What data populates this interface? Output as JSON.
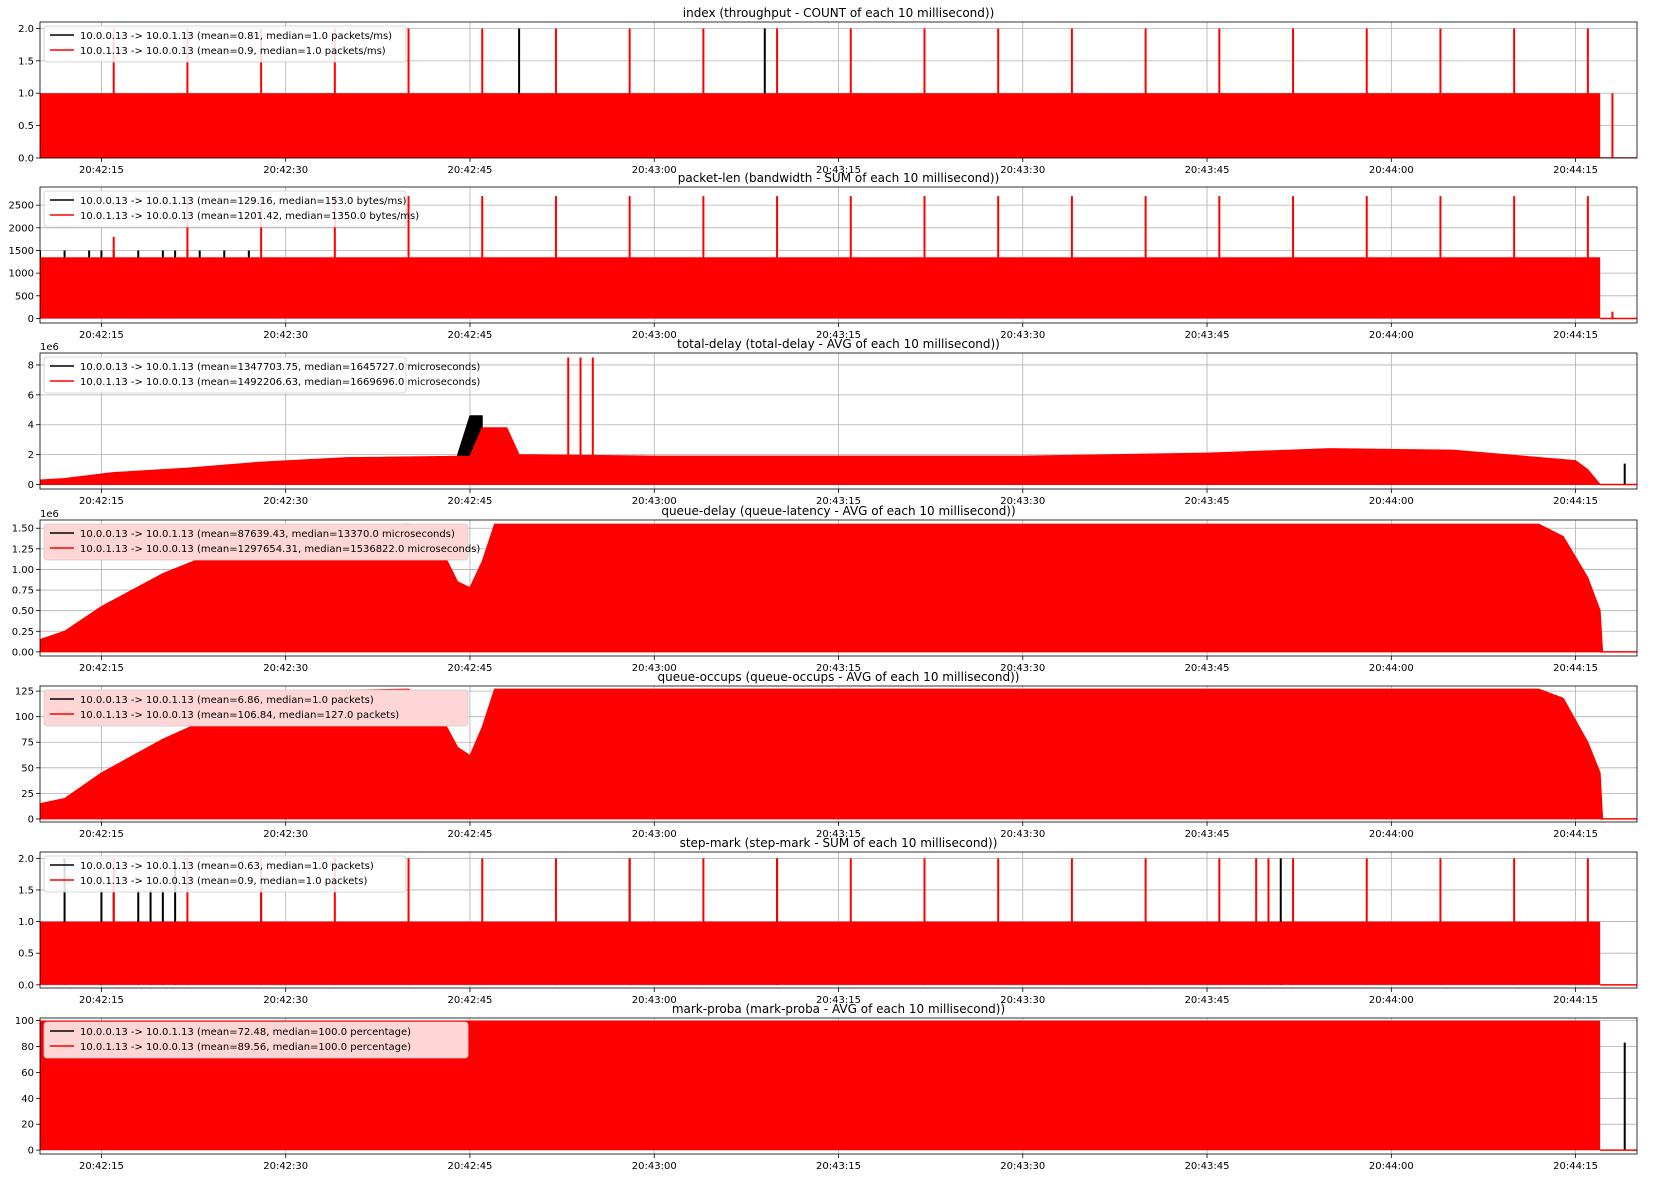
{
  "figure": {
    "background": "#ffffff",
    "series_colors": [
      "#000000",
      "#ff0000"
    ]
  },
  "x_axis": {
    "type": "time",
    "range": [
      "20:42:10",
      "20:44:20"
    ],
    "ticks": [
      "20:42:15",
      "20:42:30",
      "20:42:45",
      "20:43:00",
      "20:43:15",
      "20:43:30",
      "20:43:45",
      "20:44:00",
      "20:44:15"
    ],
    "grid": true
  },
  "chart_data": [
    {
      "type": "line",
      "title": "index (throughput - COUNT of each 10 millisecond))",
      "offset_label": "",
      "yticks": [
        "0.0",
        "0.5",
        "1.0",
        "1.5",
        "2.0"
      ],
      "ylim": [
        0,
        2.1
      ],
      "grid": true,
      "legend": {
        "position": "top-left",
        "highlighted": false
      },
      "series": [
        {
          "name": "10.0.0.13 -> 10.0.1.13 (mean=0.81, median=1.0 packets/ms)",
          "color": "#000000",
          "spikes": [
            {
              "t": "20:42:49",
              "v": 2.0
            },
            {
              "t": "20:43:09",
              "v": 2.0
            }
          ]
        },
        {
          "name": "10.0.1.13 -> 10.0.0.13 (mean=0.9, median=1.0 packets/ms)",
          "color": "#ff0000",
          "band": {
            "start": "20:42:10",
            "end": "20:44:17",
            "low": 0,
            "high": 1.0
          },
          "spikes": [
            {
              "t": "20:42:16",
              "v": 2.0
            },
            {
              "t": "20:42:22",
              "v": 2.0
            },
            {
              "t": "20:42:28",
              "v": 2.0
            },
            {
              "t": "20:42:34",
              "v": 2.0
            },
            {
              "t": "20:42:40",
              "v": 2.0
            },
            {
              "t": "20:42:46",
              "v": 2.0
            },
            {
              "t": "20:42:52",
              "v": 2.0
            },
            {
              "t": "20:42:58",
              "v": 2.0
            },
            {
              "t": "20:43:04",
              "v": 2.0
            },
            {
              "t": "20:43:10",
              "v": 2.0
            },
            {
              "t": "20:43:16",
              "v": 2.0
            },
            {
              "t": "20:43:22",
              "v": 2.0
            },
            {
              "t": "20:43:28",
              "v": 2.0
            },
            {
              "t": "20:43:34",
              "v": 2.0
            },
            {
              "t": "20:43:40",
              "v": 2.0
            },
            {
              "t": "20:43:46",
              "v": 2.0
            },
            {
              "t": "20:43:52",
              "v": 2.0
            },
            {
              "t": "20:43:58",
              "v": 2.0
            },
            {
              "t": "20:44:04",
              "v": 2.0
            },
            {
              "t": "20:44:10",
              "v": 2.0
            },
            {
              "t": "20:44:16",
              "v": 2.0
            },
            {
              "t": "20:44:18",
              "v": 1.0
            }
          ]
        }
      ]
    },
    {
      "type": "line",
      "title": "packet-len (bandwidth - SUM of each 10 millisecond))",
      "offset_label": "",
      "yticks": [
        "0",
        "500",
        "1000",
        "1500",
        "2000",
        "2500"
      ],
      "ylim": [
        -100,
        2900
      ],
      "grid": true,
      "legend": {
        "position": "top-left",
        "highlighted": false
      },
      "series": [
        {
          "name": "10.0.0.13 -> 10.0.1.13 (mean=129.16, median=153.0 bytes/ms)",
          "color": "#000000",
          "spikes": [
            {
              "t": "20:42:10",
              "v": 1500
            },
            {
              "t": "20:42:12",
              "v": 1500
            },
            {
              "t": "20:42:14",
              "v": 1500
            },
            {
              "t": "20:42:15",
              "v": 1500
            },
            {
              "t": "20:42:16",
              "v": 1500
            },
            {
              "t": "20:42:18",
              "v": 1500
            },
            {
              "t": "20:42:20",
              "v": 1500
            },
            {
              "t": "20:42:21",
              "v": 1500
            },
            {
              "t": "20:42:22",
              "v": 1500
            },
            {
              "t": "20:42:23",
              "v": 1500
            },
            {
              "t": "20:42:25",
              "v": 1500
            },
            {
              "t": "20:42:27",
              "v": 1500
            }
          ]
        },
        {
          "name": "10.0.1.13 -> 10.0.0.13 (mean=1201.42, median=1350.0 bytes/ms)",
          "color": "#ff0000",
          "band": {
            "start": "20:42:10",
            "end": "20:44:17",
            "low": 0,
            "high": 1350
          },
          "spikes": [
            {
              "t": "20:42:16",
              "v": 1800
            },
            {
              "t": "20:42:22",
              "v": 2700
            },
            {
              "t": "20:42:28",
              "v": 2700
            },
            {
              "t": "20:42:34",
              "v": 2700
            },
            {
              "t": "20:42:40",
              "v": 2700
            },
            {
              "t": "20:42:46",
              "v": 2700
            },
            {
              "t": "20:42:52",
              "v": 2700
            },
            {
              "t": "20:42:58",
              "v": 2700
            },
            {
              "t": "20:43:04",
              "v": 2700
            },
            {
              "t": "20:43:10",
              "v": 2700
            },
            {
              "t": "20:43:16",
              "v": 2700
            },
            {
              "t": "20:43:22",
              "v": 2700
            },
            {
              "t": "20:43:28",
              "v": 2700
            },
            {
              "t": "20:43:34",
              "v": 2700
            },
            {
              "t": "20:43:40",
              "v": 2700
            },
            {
              "t": "20:43:46",
              "v": 2700
            },
            {
              "t": "20:43:52",
              "v": 2700
            },
            {
              "t": "20:43:58",
              "v": 2700
            },
            {
              "t": "20:44:04",
              "v": 2700
            },
            {
              "t": "20:44:10",
              "v": 2700
            },
            {
              "t": "20:44:16",
              "v": 2700
            },
            {
              "t": "20:44:18",
              "v": 150
            }
          ]
        }
      ]
    },
    {
      "type": "line",
      "title": "total-delay (total-delay - AVG of each 10 millisecond))",
      "offset_label": "1e6",
      "yticks": [
        "0",
        "2",
        "4",
        "6",
        "8"
      ],
      "ylim": [
        -0.3,
        8.8
      ],
      "grid": true,
      "legend": {
        "position": "top-left",
        "highlighted": false
      },
      "series": [
        {
          "name": "10.0.0.13 -> 10.0.1.13 (mean=1347703.75, median=1645727.0 microseconds)",
          "color": "#000000",
          "profile": [
            [
              "20:42:44",
              2.0
            ],
            [
              "20:42:45",
              4.6
            ],
            [
              "20:42:46",
              4.6
            ]
          ],
          "spikes": [
            {
              "t": "20:44:19",
              "v": 1.4
            }
          ]
        },
        {
          "name": "10.0.1.13 -> 10.0.0.13 (mean=1492206.63, median=1669696.0 microseconds)",
          "color": "#ff0000",
          "profile": [
            [
              "20:42:10",
              0.3
            ],
            [
              "20:42:12",
              0.4
            ],
            [
              "20:42:16",
              0.8
            ],
            [
              "20:42:22",
              1.1
            ],
            [
              "20:42:28",
              1.5
            ],
            [
              "20:42:35",
              1.8
            ],
            [
              "20:42:45",
              1.9
            ],
            [
              "20:42:46",
              3.8
            ],
            [
              "20:42:48",
              3.8
            ],
            [
              "20:42:49",
              2.0
            ],
            [
              "20:43:00",
              1.9
            ],
            [
              "20:43:30",
              1.9
            ],
            [
              "20:43:45",
              2.1
            ],
            [
              "20:43:55",
              2.4
            ],
            [
              "20:44:05",
              2.3
            ],
            [
              "20:44:15",
              1.6
            ],
            [
              "20:44:16",
              1.0
            ],
            [
              "20:44:17",
              0
            ]
          ],
          "spikes": [
            {
              "t": "20:42:53",
              "v": 8.5
            },
            {
              "t": "20:42:54",
              "v": 8.5
            },
            {
              "t": "20:42:55",
              "v": 8.5
            }
          ]
        }
      ]
    },
    {
      "type": "area",
      "title": "queue-delay (queue-latency - AVG of each 10 millisecond))",
      "offset_label": "1e6",
      "yticks": [
        "0.00",
        "0.25",
        "0.50",
        "0.75",
        "1.00",
        "1.25",
        "1.50"
      ],
      "ylim": [
        -0.05,
        1.6
      ],
      "grid": true,
      "legend": {
        "position": "top-left",
        "highlighted": true
      },
      "series": [
        {
          "name": "10.0.0.13 -> 10.0.1.13 (mean=87639.43, median=13370.0 microseconds)",
          "color": "#000000"
        },
        {
          "name": "10.0.1.13 -> 10.0.0.13 (mean=1297654.31, median=1536822.0 microseconds)",
          "color": "#ff0000",
          "profile": [
            [
              "20:42:10",
              0.15
            ],
            [
              "20:42:12",
              0.25
            ],
            [
              "20:42:15",
              0.55
            ],
            [
              "20:42:20",
              0.95
            ],
            [
              "20:42:25",
              1.25
            ],
            [
              "20:42:32",
              1.5
            ],
            [
              "20:42:40",
              1.55
            ],
            [
              "20:42:42",
              1.45
            ],
            [
              "20:42:44",
              0.85
            ],
            [
              "20:42:45",
              0.78
            ],
            [
              "20:42:46",
              1.1
            ],
            [
              "20:42:47",
              1.55
            ],
            [
              "20:43:30",
              1.55
            ],
            [
              "20:44:12",
              1.55
            ],
            [
              "20:44:14",
              1.4
            ],
            [
              "20:44:16",
              0.9
            ],
            [
              "20:44:17",
              0.5
            ],
            [
              "20:44:17.2",
              0
            ]
          ]
        }
      ]
    },
    {
      "type": "area",
      "title": "queue-occups (queue-occups - AVG of each 10 millisecond))",
      "offset_label": "",
      "yticks": [
        "0",
        "25",
        "50",
        "75",
        "100",
        "125"
      ],
      "ylim": [
        -3,
        130
      ],
      "grid": true,
      "legend": {
        "position": "top-left",
        "highlighted": true
      },
      "series": [
        {
          "name": "10.0.0.13 -> 10.0.1.13 (mean=6.86, median=1.0 packets)",
          "color": "#000000"
        },
        {
          "name": "10.0.1.13 -> 10.0.0.13 (mean=106.84, median=127.0 packets)",
          "color": "#ff0000",
          "profile": [
            [
              "20:42:10",
              15
            ],
            [
              "20:42:12",
              20
            ],
            [
              "20:42:15",
              45
            ],
            [
              "20:42:20",
              78
            ],
            [
              "20:42:25",
              105
            ],
            [
              "20:42:32",
              125
            ],
            [
              "20:42:40",
              127
            ],
            [
              "20:42:42",
              115
            ],
            [
              "20:42:44",
              70
            ],
            [
              "20:42:45",
              62
            ],
            [
              "20:42:46",
              90
            ],
            [
              "20:42:47",
              127
            ],
            [
              "20:43:30",
              127
            ],
            [
              "20:44:12",
              127
            ],
            [
              "20:44:14",
              118
            ],
            [
              "20:44:16",
              75
            ],
            [
              "20:44:17",
              45
            ],
            [
              "20:44:17.2",
              0
            ]
          ]
        }
      ]
    },
    {
      "type": "line",
      "title": "step-mark (step-mark - SUM of each 10 millisecond))",
      "offset_label": "",
      "yticks": [
        "0.0",
        "0.5",
        "1.0",
        "1.5",
        "2.0"
      ],
      "ylim": [
        -0.05,
        2.1
      ],
      "grid": true,
      "legend": {
        "position": "top-left",
        "highlighted": false
      },
      "series": [
        {
          "name": "10.0.0.13 -> 10.0.1.13 (mean=0.63, median=1.0 packets)",
          "color": "#000000",
          "spikes": [
            {
              "t": "20:42:12",
              "v": 2.0
            },
            {
              "t": "20:42:15",
              "v": 1.5
            },
            {
              "t": "20:42:16",
              "v": 1.5
            },
            {
              "t": "20:42:18",
              "v": 1.5
            },
            {
              "t": "20:42:19",
              "v": 1.5
            },
            {
              "t": "20:42:20",
              "v": 1.5
            },
            {
              "t": "20:42:21",
              "v": 2.0
            },
            {
              "t": "20:42:28",
              "v": 1.5
            },
            {
              "t": "20:42:58",
              "v": 2.0
            },
            {
              "t": "20:43:10",
              "v": 2.0
            },
            {
              "t": "20:43:51",
              "v": 2.0
            }
          ]
        },
        {
          "name": "10.0.1.13 -> 10.0.0.13 (mean=0.9, median=1.0 packets)",
          "color": "#ff0000",
          "band": {
            "start": "20:42:10",
            "end": "20:44:17",
            "low": 0,
            "high": 1.0
          },
          "spikes": [
            {
              "t": "20:42:16",
              "v": 2.0
            },
            {
              "t": "20:42:22",
              "v": 2.0
            },
            {
              "t": "20:42:28",
              "v": 2.0
            },
            {
              "t": "20:42:34",
              "v": 2.0
            },
            {
              "t": "20:42:40",
              "v": 2.0
            },
            {
              "t": "20:42:46",
              "v": 2.0
            },
            {
              "t": "20:42:52",
              "v": 2.0
            },
            {
              "t": "20:42:58",
              "v": 2.0
            },
            {
              "t": "20:43:04",
              "v": 2.0
            },
            {
              "t": "20:43:10",
              "v": 2.0
            },
            {
              "t": "20:43:16",
              "v": 2.0
            },
            {
              "t": "20:43:22",
              "v": 2.0
            },
            {
              "t": "20:43:28",
              "v": 2.0
            },
            {
              "t": "20:43:34",
              "v": 2.0
            },
            {
              "t": "20:43:40",
              "v": 2.0
            },
            {
              "t": "20:43:46",
              "v": 2.0
            },
            {
              "t": "20:43:49",
              "v": 2.0
            },
            {
              "t": "20:43:50",
              "v": 2.0
            },
            {
              "t": "20:43:52",
              "v": 2.0
            },
            {
              "t": "20:43:58",
              "v": 2.0
            },
            {
              "t": "20:44:04",
              "v": 2.0
            },
            {
              "t": "20:44:10",
              "v": 2.0
            },
            {
              "t": "20:44:16",
              "v": 2.0
            }
          ]
        }
      ]
    },
    {
      "type": "area",
      "title": "mark-proba (mark-proba - AVG of each 10 millisecond))",
      "offset_label": "",
      "yticks": [
        "0",
        "20",
        "40",
        "60",
        "80",
        "100"
      ],
      "ylim": [
        -3,
        102
      ],
      "grid": true,
      "legend": {
        "position": "top-left",
        "highlighted": true
      },
      "series": [
        {
          "name": "10.0.0.13 -> 10.0.1.13 (mean=72.48, median=100.0 percentage)",
          "color": "#000000",
          "spikes": [
            {
              "t": "20:44:19",
              "v": 83
            }
          ]
        },
        {
          "name": "10.0.1.13 -> 10.0.0.13 (mean=89.56, median=100.0 percentage)",
          "color": "#ff0000",
          "band": {
            "start": "20:42:10",
            "end": "20:44:17",
            "low": 0,
            "high": 100
          }
        }
      ]
    }
  ]
}
